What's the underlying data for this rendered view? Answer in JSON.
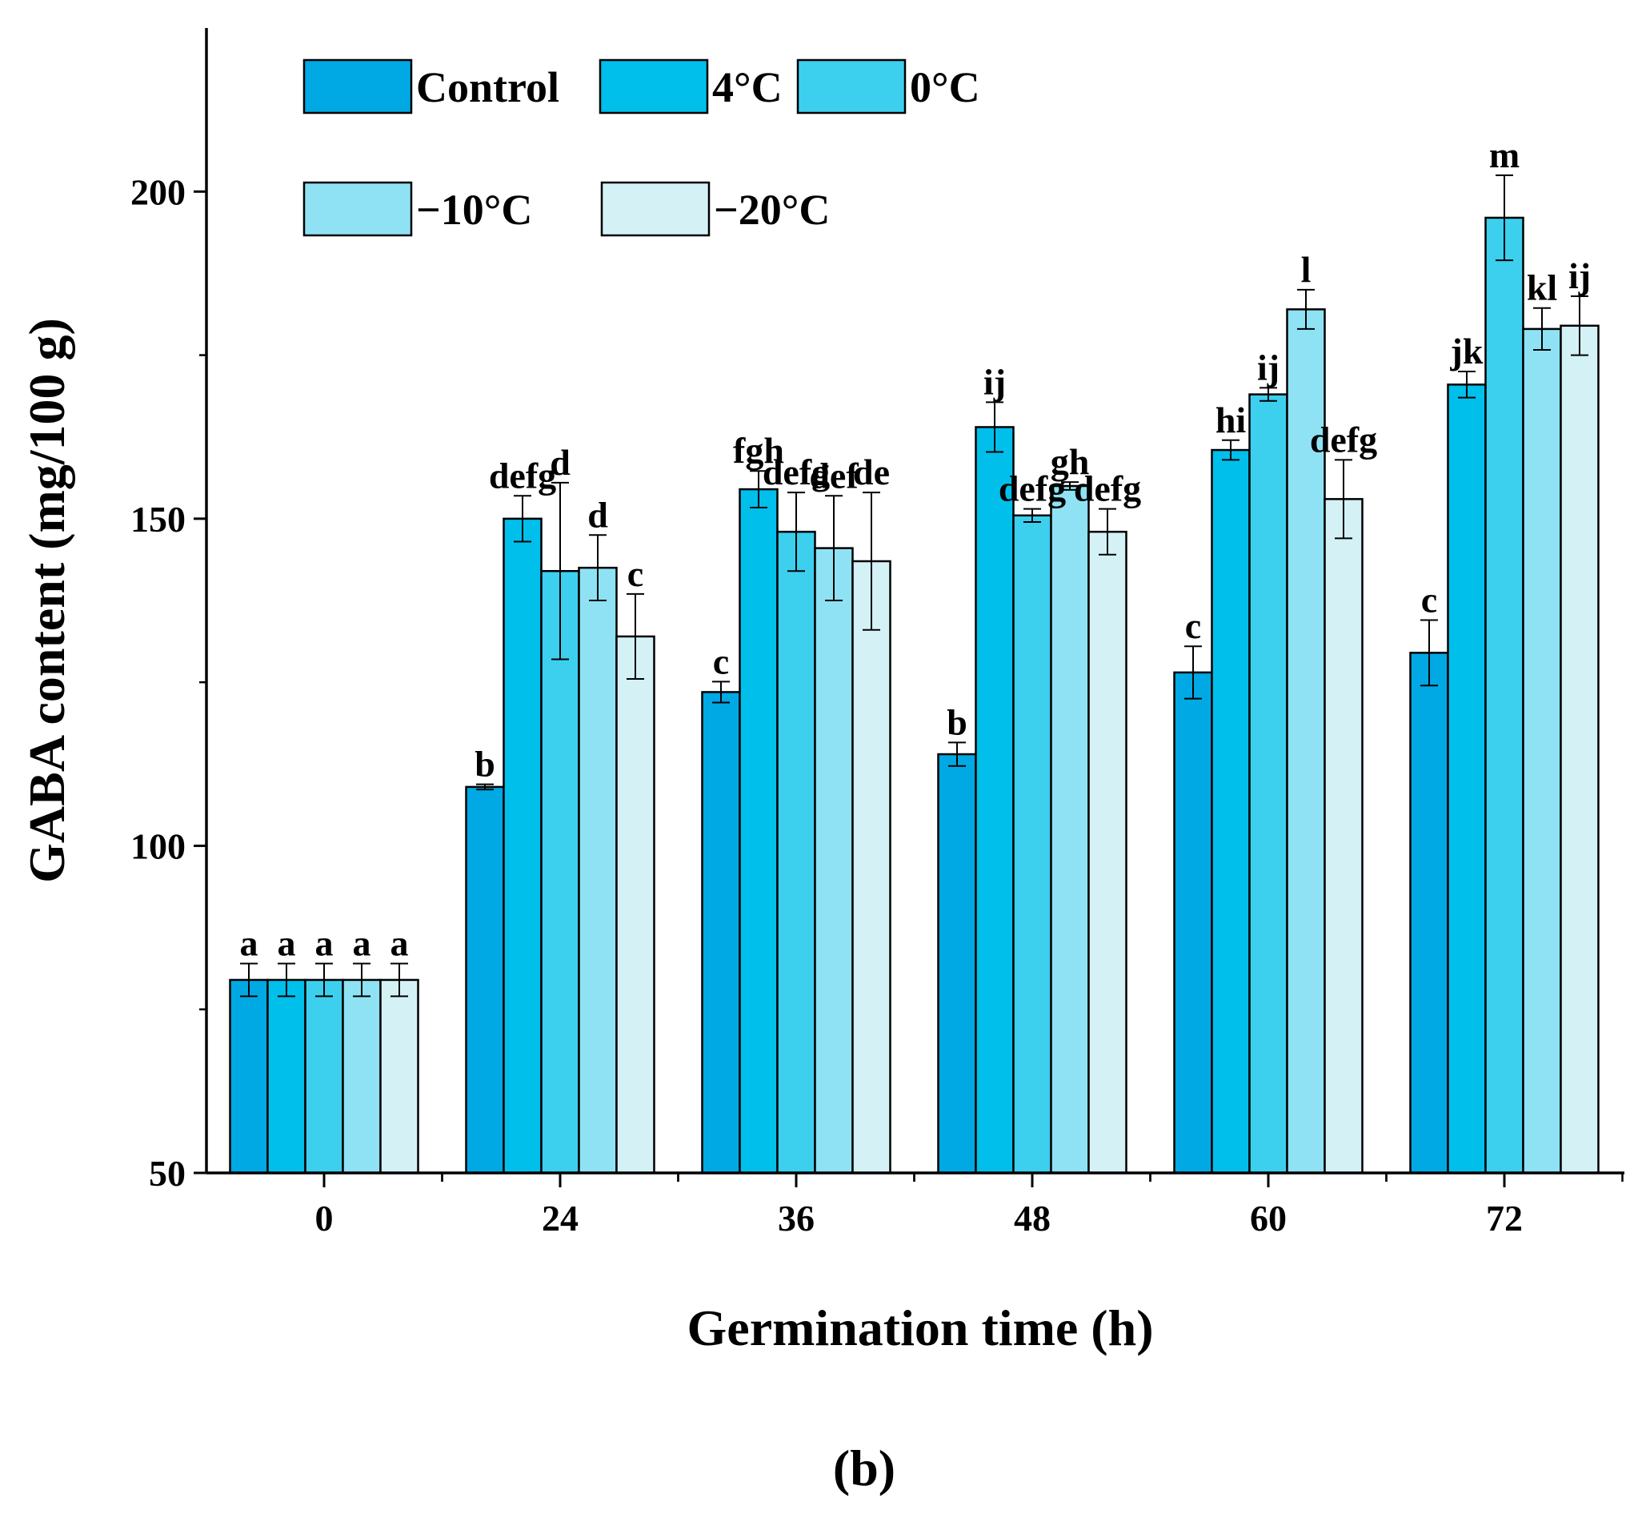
{
  "chart_data": {
    "type": "bar",
    "title": "",
    "xlabel": "Germination time (h)",
    "ylabel": "GABA content (mg/100 g)",
    "panel_label": "(b)",
    "ylim": [
      50,
      225
    ],
    "yticks": [
      "50",
      "100",
      "150",
      "200"
    ],
    "categories": [
      "0",
      "24",
      "36",
      "48",
      "60",
      "72"
    ],
    "legend_position": "top-left",
    "series": [
      {
        "name": "Control",
        "color": "#00a9e3",
        "values": [
          79.5,
          109,
          123.5,
          114,
          126.5,
          129.5
        ],
        "errors": [
          2.5,
          0.4,
          1.6,
          1.8,
          4,
          5
        ],
        "labels": [
          "a",
          "b",
          "c",
          "b",
          "c",
          "c"
        ]
      },
      {
        "name": "4°C",
        "color": "#00bfeb",
        "values": [
          79.5,
          150,
          154.5,
          164,
          160.5,
          170.5
        ],
        "errors": [
          2.5,
          3.5,
          2.8,
          3.8,
          1.5,
          2
        ],
        "labels": [
          "a",
          "defg",
          "fgh",
          "ij",
          "hi",
          "jk"
        ]
      },
      {
        "name": "0°C",
        "color": "#3dcfee",
        "values": [
          79.5,
          142,
          148,
          150.5,
          169,
          196
        ],
        "errors": [
          2.5,
          13.5,
          6,
          1,
          1,
          6.5
        ],
        "labels": [
          "a",
          "d",
          "defg",
          "defg",
          "ij",
          "m"
        ]
      },
      {
        "name": "−10°C",
        "color": "#8fe2f4",
        "values": [
          79.5,
          142.5,
          145.5,
          155,
          182,
          179
        ],
        "errors": [
          2.5,
          5,
          8,
          0.6,
          3,
          3.2
        ],
        "labels": [
          "a",
          "d",
          "def",
          "gh",
          "l",
          "kl"
        ]
      },
      {
        "name": "−20°C",
        "color": "#d4f1f6",
        "values": [
          79.5,
          132,
          143.5,
          148,
          153,
          179.5
        ],
        "errors": [
          2.5,
          6.5,
          10.5,
          3.5,
          6,
          4.5
        ],
        "labels": [
          "a",
          "c",
          "de",
          "defg",
          "defg",
          "ij"
        ]
      }
    ]
  }
}
